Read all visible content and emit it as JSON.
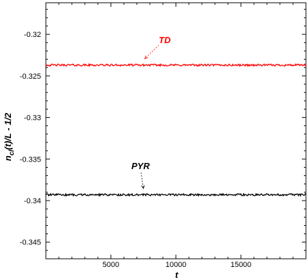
{
  "chart_data": {
    "type": "line",
    "title": "",
    "xlabel": "t",
    "ylabel_parts": [
      "n",
      "cl",
      "(t)/L - 1/2"
    ],
    "xlim": [
      0,
      20000
    ],
    "ylim": [
      -0.347,
      -0.3162
    ],
    "x_ticks": [
      5000,
      10000,
      15000
    ],
    "x_tick_labels": [
      "5000",
      "10000",
      "15000"
    ],
    "y_ticks": [
      -0.345,
      -0.34,
      -0.335,
      -0.33,
      -0.325,
      -0.32
    ],
    "y_tick_labels": [
      "-0.345",
      "-0.34",
      "-0.335",
      "-0.33",
      "-0.325",
      "-0.32"
    ],
    "grid": false,
    "series": [
      {
        "name": "TD",
        "color": "#ff0000",
        "x_start": 0,
        "x_end": 20000,
        "mean": -0.3237,
        "noise_amplitude": 0.00012
      },
      {
        "name": "PYR",
        "color": "#000000",
        "x_start": 0,
        "x_end": 20000,
        "mean": -0.3393,
        "noise_amplitude": 0.00012
      }
    ],
    "annotations": [
      {
        "text": "TD",
        "color": "#ff0000",
        "arrow_to_x": 7600,
        "arrow_to_y": -0.3236
      },
      {
        "text": "PYR",
        "color": "#000000",
        "arrow_to_x": 7500,
        "arrow_to_y": -0.3392
      }
    ]
  }
}
